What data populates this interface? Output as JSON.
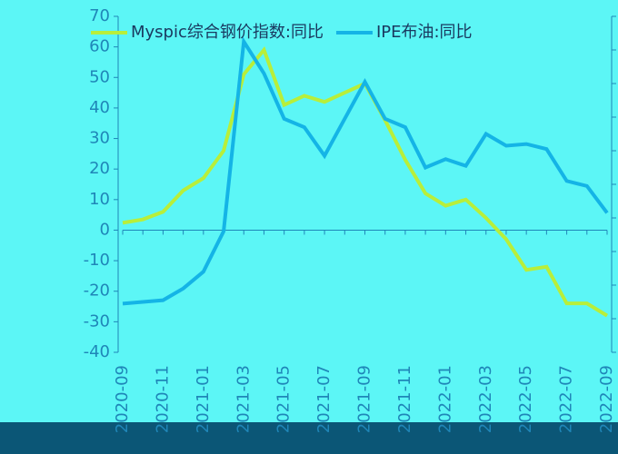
{
  "chart_data": {
    "type": "line",
    "categories": [
      "2020-09",
      null,
      "2020-11",
      null,
      "2021-01",
      null,
      "2021-03",
      null,
      "2021-05",
      null,
      "2021-07",
      null,
      "2021-09",
      null,
      "2021-11",
      null,
      "2022-01",
      null,
      "2022-03",
      null,
      "2022-05",
      null,
      "2022-07",
      null,
      "2022-09"
    ],
    "series": [
      {
        "name": "Myspic综合钢价指数:同比",
        "color": "#b8ee3a",
        "values": [
          2.4,
          3.5,
          6,
          13,
          17,
          26,
          51,
          59,
          41,
          44,
          42,
          45,
          48,
          36,
          23,
          12,
          8,
          10,
          4,
          -3,
          -13,
          -12,
          -24,
          -24,
          -28
        ]
      },
      {
        "name": "IPE布油:同比",
        "color": "#14b4e6",
        "axis": "y2",
        "values": [
          -31,
          -30,
          -29,
          -22,
          -12,
          12,
          125,
          106,
          79,
          74,
          57,
          79,
          101,
          79,
          74,
          50,
          55,
          51,
          70,
          63,
          64,
          61,
          42,
          39,
          23
        ]
      }
    ],
    "ylim": [
      -40,
      70
    ],
    "yticks": [
      -40,
      -30,
      -20,
      -10,
      0,
      10,
      20,
      30,
      40,
      50,
      60,
      70
    ],
    "y2lim": [
      -60,
      140
    ],
    "y2ticks": [
      -60,
      -40,
      -20,
      0,
      20,
      40,
      60,
      80,
      100,
      120,
      140
    ],
    "legend": "top"
  }
}
